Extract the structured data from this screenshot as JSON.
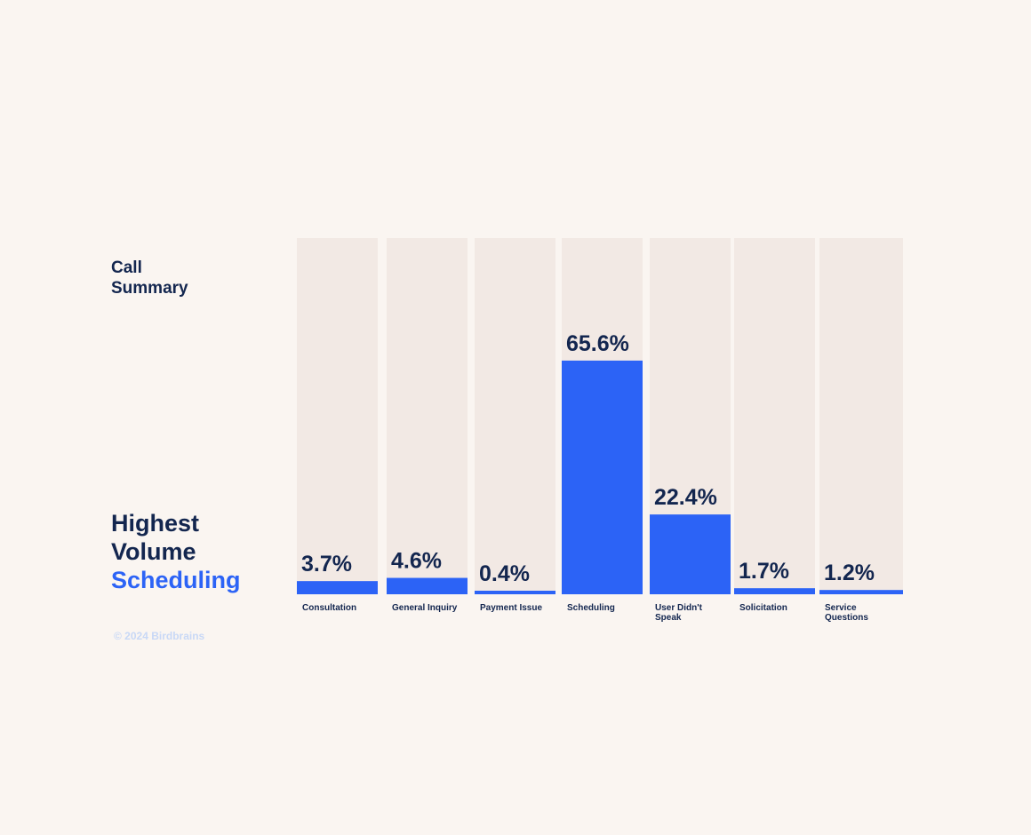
{
  "heading": {
    "line1": "Call",
    "line2": "Summary"
  },
  "highlight": {
    "line1": "Highest",
    "line2": "Volume",
    "line3": "Scheduling"
  },
  "copyright": "© 2024 Birdbrains",
  "colors": {
    "background": "#faf5f1",
    "track": "#f2e9e4",
    "bar": "#2c63f6",
    "text": "#13264f",
    "accent": "#2c63f6",
    "muted": "#c8d8f6"
  },
  "chart_data": {
    "type": "bar",
    "categories": [
      [
        "Consultation"
      ],
      [
        "General Inquiry"
      ],
      [
        "Payment Issue"
      ],
      [
        "Scheduling"
      ],
      [
        "User Didn't",
        "Speak"
      ],
      [
        "Solicitation"
      ],
      [
        "Service",
        "Questions"
      ]
    ],
    "values": [
      3.7,
      4.6,
      0.4,
      65.6,
      22.4,
      1.7,
      1.2
    ],
    "value_labels": [
      "3.7%",
      "4.6%",
      "0.4%",
      "65.6%",
      "22.4%",
      "1.7%",
      "1.2%"
    ],
    "unit": "%",
    "ylim": [
      0,
      100
    ],
    "grid": false,
    "legend": "none"
  }
}
